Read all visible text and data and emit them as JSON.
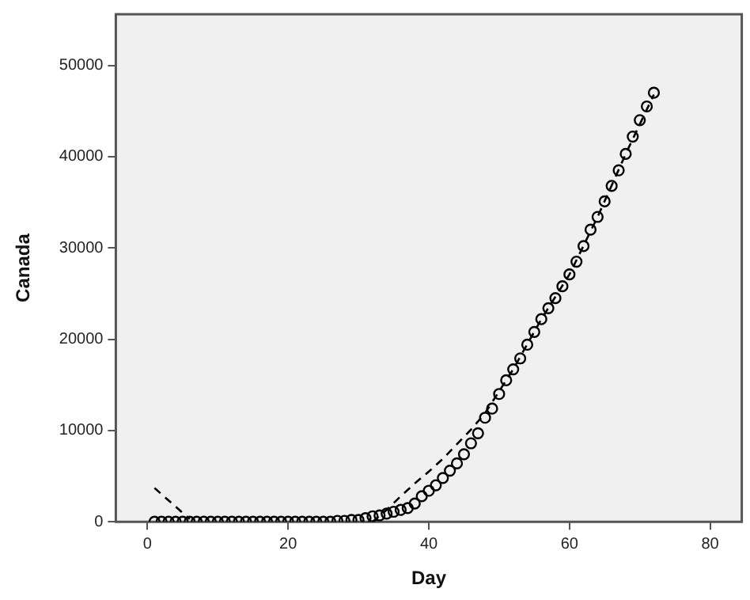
{
  "chart_data": {
    "type": "scatter",
    "xlabel": "Day",
    "ylabel": "Canada",
    "xlim": [
      -4.5,
      84.5
    ],
    "xticks": [
      0,
      20,
      40,
      60,
      80
    ],
    "ylim": [
      0,
      55600
    ],
    "yticks": [
      0,
      10000,
      20000,
      30000,
      40000,
      50000
    ],
    "legend": false,
    "series": [
      {
        "marker": "circle",
        "color": "#000000",
        "x": [
          1,
          2,
          3,
          4,
          5,
          6,
          7,
          8,
          9,
          10,
          11,
          12,
          13,
          14,
          15,
          16,
          17,
          18,
          19,
          20,
          21,
          22,
          23,
          24,
          25,
          26,
          27,
          28,
          29,
          30,
          31,
          32,
          33,
          34,
          35,
          36,
          37,
          38,
          39,
          40,
          41,
          42,
          43,
          44,
          45,
          46,
          47,
          48,
          49,
          50,
          51,
          52,
          53,
          54,
          55,
          56,
          57,
          58,
          59,
          60,
          61,
          62,
          63,
          64,
          65,
          66,
          67,
          68,
          69,
          70,
          71,
          72
        ],
        "values": [
          0,
          0,
          0,
          0,
          0,
          0,
          0,
          0,
          0,
          0,
          0,
          0,
          0,
          0,
          0,
          0,
          0,
          0,
          0,
          0,
          0,
          0,
          0,
          0,
          0,
          0,
          100,
          100,
          200,
          200,
          400,
          600,
          700,
          900,
          1100,
          1300,
          1500,
          2000,
          2800,
          3400,
          4000,
          4800,
          5600,
          6400,
          7400,
          8600,
          9700,
          11400,
          12400,
          14000,
          15500,
          16700,
          17900,
          19400,
          20800,
          22200,
          23400,
          24500,
          25800,
          27100,
          28500,
          30200,
          32000,
          33400,
          35100,
          36800,
          38500,
          40300,
          42200,
          44000,
          45500,
          47000
        ]
      },
      {
        "type": "line",
        "marker": "none",
        "line_style": "dashed",
        "color": "#000000",
        "x": [
          1,
          3.5,
          6,
          19,
          32,
          34,
          36,
          38,
          40,
          42,
          44,
          46,
          48,
          52,
          56,
          60,
          64,
          68,
          72
        ],
        "values": [
          3700,
          2000,
          300,
          null,
          0,
          1300,
          2800,
          4200,
          5500,
          6900,
          8500,
          10100,
          11900,
          16700,
          22200,
          27100,
          33400,
          40300,
          46800
        ]
      }
    ]
  }
}
